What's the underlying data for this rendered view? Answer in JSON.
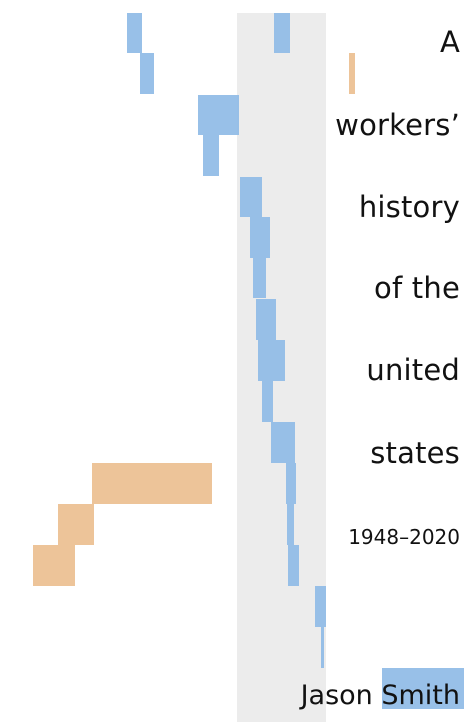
{
  "colors": {
    "blue": "#8fbbe6",
    "orange": "#ecbf90",
    "band": "#ececec",
    "text": "#111111"
  },
  "title_lines": [
    "A",
    "workers’",
    "history",
    "of the",
    "united",
    "states"
  ],
  "years": "1948–2020",
  "author": "Jason Smith",
  "marks": [
    {
      "color": "blue",
      "level": 0.1
    },
    {
      "color": "blue",
      "level": 0.12
    },
    {
      "color": "blue",
      "level": 0.3
    },
    {
      "color": "blue",
      "level": 0.5
    },
    {
      "color": "blue",
      "level": 0.55
    },
    {
      "color": "blue",
      "level": 0.6
    },
    {
      "color": "blue",
      "level": 0.7
    },
    {
      "color": "blue",
      "level": 0.75
    }
  ]
}
